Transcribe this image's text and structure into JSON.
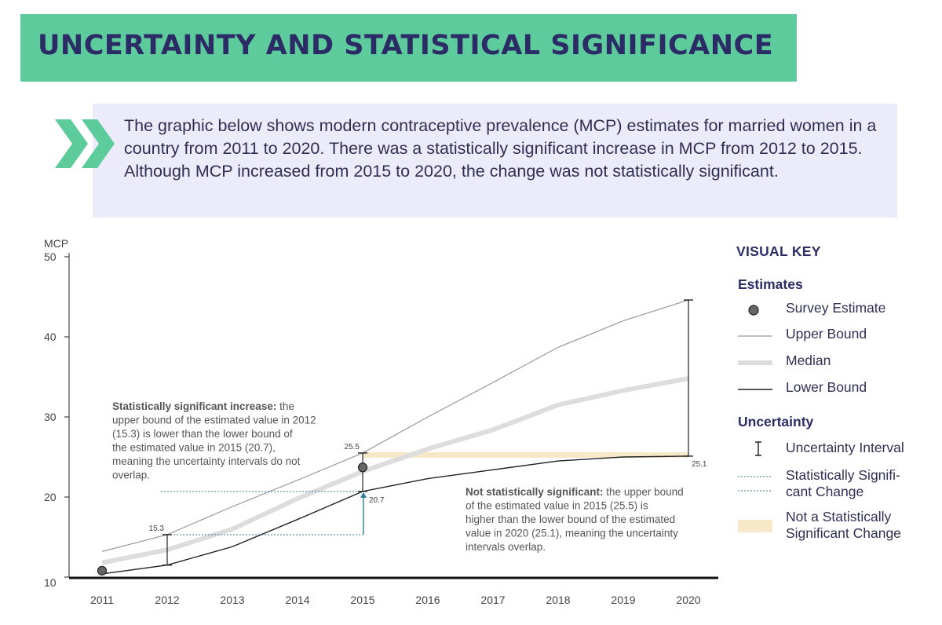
{
  "header": {
    "title": "UNCERTAINTY AND STATISTICAL SIGNIFICANCE"
  },
  "intro": {
    "text": "The graphic below shows modern contraceptive prevalence (MCP) estimates for married women in a country from 2011 to 2020. There was a statistically significant increase in MCP from 2012 to 2015. Although MCP increased from 2015 to 2020, the change was not statistically significant."
  },
  "colors": {
    "banner": "#5ecb9c",
    "title": "#2b2b66",
    "intro_bg": "#ecebfa",
    "chevron": "#5ecb9c",
    "upper": "#999999",
    "median": "#dddddd",
    "lower": "#222222",
    "significant": "#2a7a96",
    "not_significant": "#f7e9c8"
  },
  "chart_data": {
    "type": "line",
    "ylabel": "MCP",
    "ylim": [
      10,
      50
    ],
    "yticks": [
      10,
      20,
      30,
      40,
      50
    ],
    "x": [
      2011,
      2012,
      2013,
      2014,
      2015,
      2016,
      2017,
      2018,
      2019,
      2020
    ],
    "series": [
      {
        "name": "Upper Bound",
        "values": [
          13.2,
          15.3,
          18.8,
          22.1,
          25.5,
          30.0,
          34.3,
          38.7,
          42.0,
          44.6
        ]
      },
      {
        "name": "Median",
        "values": [
          11.8,
          13.4,
          16.0,
          19.8,
          23.2,
          26.0,
          28.4,
          31.5,
          33.3,
          34.8
        ]
      },
      {
        "name": "Lower Bound",
        "values": [
          10.4,
          11.5,
          13.8,
          17.2,
          20.7,
          22.3,
          23.4,
          24.5,
          25.0,
          25.1
        ]
      }
    ],
    "survey_estimates": [
      {
        "x": 2011,
        "y": 10.8
      },
      {
        "x": 2015,
        "y": 23.7
      }
    ],
    "point_labels": {
      "y2012_upper": "15.3",
      "y2015_upper": "25.5",
      "y2015_lower": "20.7",
      "y2020_lower": "25.1"
    },
    "annotations": {
      "significant_bold": "Statistically significant increase:",
      "significant_text": " the upper bound of the estimated value in 2012 (15.3) is lower than the lower bound of the estimated value in 2015 (20.7), meaning the uncertainty intervals do not overlap.",
      "not_significant_bold": "Not statistically significant:",
      "not_significant_text": " the upper bound of the estimated value in 2015 (25.5) is higher than the lower bound of the estimated value in 2020 (25.1), meaning the uncertainty intervals overlap."
    }
  },
  "key": {
    "title": "VISUAL KEY",
    "estimates_heading": "Estimates",
    "survey_estimate": "Survey Estimate",
    "upper_bound": "Upper Bound",
    "median": "Median",
    "lower_bound": "Lower Bound",
    "uncertainty_heading": "Uncertainty",
    "uncertainty_interval": "Uncertainty Interval",
    "significant_change": "Statistically Signifi-\ncant Change",
    "not_significant_change": "Not a Statistically\nSignificant Change"
  }
}
